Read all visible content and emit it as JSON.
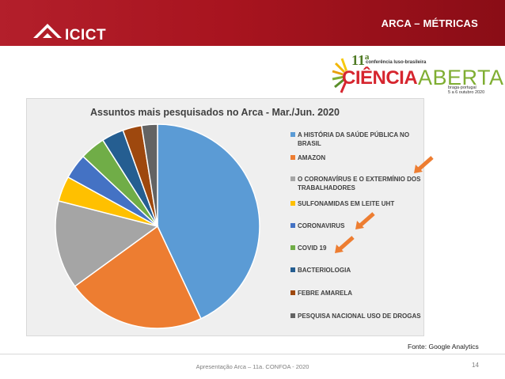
{
  "header": {
    "title": "ARCA – MÉTRICAS",
    "logo_text": "ICICT",
    "bg_color": "#b31f2b"
  },
  "event_badge": {
    "number": "11ª",
    "subtitle": "conferência luso-brasileira",
    "word_red": "CIÊNCIA",
    "word_green": "ABERTA",
    "location": "braga·portugal",
    "dates": "5 a 6 outubro 2020"
  },
  "chart_data": {
    "type": "pie",
    "title": "Assuntos mais pesquisados no Arca - Mar./Jun. 2020",
    "legend_position": "right",
    "slices": [
      {
        "label": "A HISTÓRIA DA SAÚDE PÚBLICA NO BRASIL",
        "value": 43,
        "color": "#5b9bd5"
      },
      {
        "label": "AMAZON",
        "value": 22,
        "color": "#ed7d31"
      },
      {
        "label": "O CORONAVÍRUS E O EXTERMÍNIO DOS TRABALHADORES",
        "value": 14,
        "color": "#a5a5a5"
      },
      {
        "label": "SULFONAMIDAS EM LEITE UHT",
        "value": 4,
        "color": "#ffc000"
      },
      {
        "label": "CORONAVIRUS",
        "value": 4,
        "color": "#4472c4"
      },
      {
        "label": "COVID 19",
        "value": 4,
        "color": "#70ad47"
      },
      {
        "label": "BACTERIOLOGIA",
        "value": 3.5,
        "color": "#255e91"
      },
      {
        "label": "FEBRE AMARELA",
        "value": 3,
        "color": "#9e480e"
      },
      {
        "label": "PESQUISA NACIONAL USO DE DROGAS",
        "value": 2.5,
        "color": "#636363"
      }
    ]
  },
  "annotations": {
    "arrow_color": "#ed7d31"
  },
  "source_text": "Fonte: Google Analytics",
  "footer": {
    "text": "Apresentação Arca – 11a. CONFOA - 2020",
    "page_number": "14"
  }
}
